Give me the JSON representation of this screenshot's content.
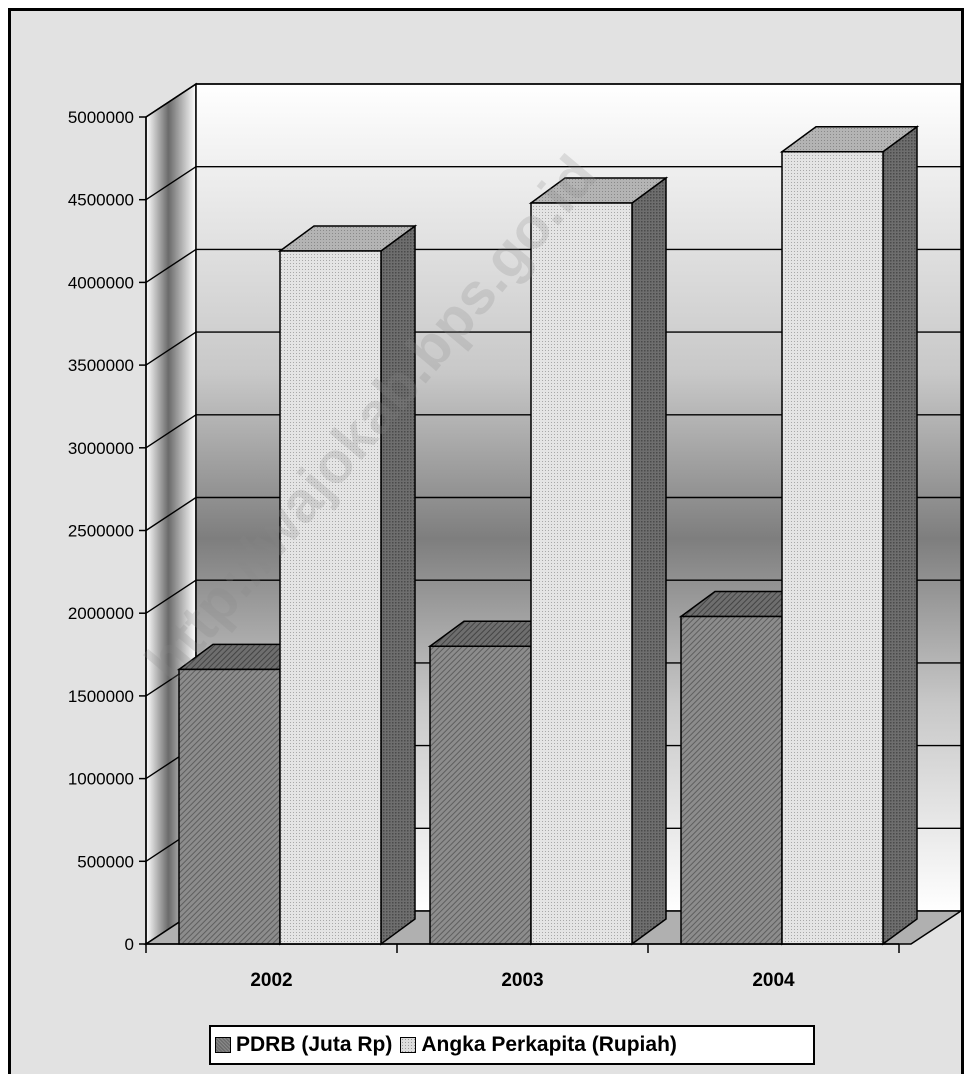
{
  "chart_data": {
    "type": "bar",
    "three_d": true,
    "categories": [
      "2002",
      "2003",
      "2004"
    ],
    "series": [
      {
        "name": "PDRB (Juta Rp)",
        "values": [
          1660000,
          1800000,
          1980000
        ],
        "pattern": "diagonal-hatch",
        "color": "#7a7a7a"
      },
      {
        "name": "Angka Perkapita (Rupiah)",
        "values": [
          4190000,
          4480000,
          4790000
        ],
        "pattern": "dotted",
        "color": "#dcdcdc"
      }
    ],
    "yticks": [
      "0",
      "500000",
      "1000000",
      "1500000",
      "2000000",
      "2500000",
      "3000000",
      "3500000",
      "4000000",
      "4500000",
      "5000000"
    ],
    "ylim": [
      0,
      5000000
    ],
    "title": "",
    "xlabel": "",
    "ylabel": "",
    "grid": true,
    "legend": "bottom",
    "watermark": "http://wajokab.bps.go.id"
  }
}
